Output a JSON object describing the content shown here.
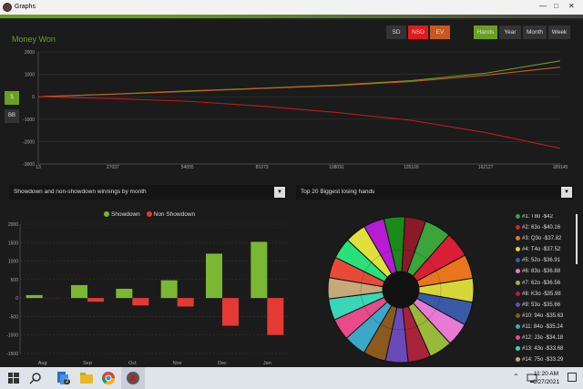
{
  "window": {
    "title": "Graphs"
  },
  "money_panel": {
    "title": "Money Won",
    "filter_buttons": [
      {
        "label": "SD",
        "color": "#333333"
      },
      {
        "label": "NSD",
        "color": "#e01b1b"
      },
      {
        "label": "EV",
        "color": "#c65a1e"
      }
    ],
    "range_buttons": [
      {
        "label": "Hands",
        "color": "#6aa022"
      },
      {
        "label": "Year",
        "color": "#333333"
      },
      {
        "label": "Month",
        "color": "#333333"
      },
      {
        "label": "Week",
        "color": "#333333"
      }
    ],
    "unit_buttons": [
      {
        "label": "$"
      },
      {
        "label": "BB"
      }
    ]
  },
  "bottom_left": {
    "dropdown": "Showdown and non-showdown winnings by month"
  },
  "bottom_right": {
    "dropdown": "Top 20 Biggest losing hands"
  },
  "chart_data": [
    {
      "type": "line",
      "title": "Money Won",
      "x_ticks": [
        "13",
        "27037",
        "54055",
        "81073",
        "108091",
        "135109",
        "162127",
        "189145"
      ],
      "y_ticks": [
        "2000",
        "1000",
        "0",
        "-1000",
        "-2000",
        "-3000"
      ],
      "ylim": [
        -3000,
        2000
      ],
      "xlim": [
        13,
        189145
      ],
      "series": [
        {
          "color": "#6aa022",
          "x": [
            13,
            27037,
            54055,
            81073,
            108091,
            135109,
            162127,
            189145
          ],
          "y": [
            0,
            120,
            260,
            380,
            520,
            720,
            1050,
            1600
          ]
        },
        {
          "color": "#c65a1e",
          "x": [
            13,
            27037,
            54055,
            81073,
            108091,
            135109,
            162127,
            189145
          ],
          "y": [
            0,
            110,
            240,
            370,
            500,
            680,
            960,
            1320
          ]
        },
        {
          "color": "#c21a1a",
          "x": [
            13,
            27037,
            54055,
            81073,
            108091,
            135109,
            162127,
            189145
          ],
          "y": [
            0,
            -80,
            -200,
            -420,
            -700,
            -1050,
            -1600,
            -2300
          ]
        }
      ],
      "grid": true
    },
    {
      "type": "bar",
      "categories": [
        "Aug",
        "Sep",
        "Oct",
        "Nov",
        "Dec",
        "Jan"
      ],
      "y_ticks": [
        "2000",
        "1500",
        "1000",
        "500",
        "0",
        "-500",
        "-1000",
        "-1500"
      ],
      "ylim": [
        -1500,
        2000
      ],
      "legend_position": "top",
      "grid": true,
      "series": [
        {
          "name": "Showdown",
          "color": "#7ab733",
          "values": [
            80,
            350,
            250,
            480,
            1200,
            1520
          ]
        },
        {
          "name": "Non Showdown",
          "color": "#e53935",
          "values": [
            0,
            -100,
            -200,
            -230,
            -750,
            -1000
          ]
        }
      ]
    },
    {
      "type": "pie",
      "items": [
        {
          "label": "#1: T8o -$42",
          "color": "#3aa53a",
          "value": 42
        },
        {
          "label": "#2: 63o -$40.16",
          "color": "#d91e36",
          "value": 40.16
        },
        {
          "label": "#3: Q3o -$37.82",
          "color": "#e8761c",
          "value": 37.82
        },
        {
          "label": "#4: T4o -$37.52",
          "color": "#d6d63a",
          "value": 37.52
        },
        {
          "label": "#5: 52o -$36.91",
          "color": "#3a5aa8",
          "value": 36.91
        },
        {
          "label": "#6: 83o -$36.88",
          "color": "#e87ad6",
          "value": 36.88
        },
        {
          "label": "#7: 62o -$36.56",
          "color": "#9ab83a",
          "value": 36.56
        },
        {
          "label": "#8: K3o -$35.98",
          "color": "#a8233a",
          "value": 35.98
        },
        {
          "label": "#9: 53o -$35.66",
          "color": "#6a4ab8",
          "value": 35.66
        },
        {
          "label": "#10: 94o -$35.63",
          "color": "#8a5a1e",
          "value": 35.63
        },
        {
          "label": "#11: 84o -$35.24",
          "color": "#3aa8c6",
          "value": 35.24
        },
        {
          "label": "#12: J3o -$34.18",
          "color": "#e84a8a",
          "value": 34.18
        },
        {
          "label": "#13: 43o -$33.68",
          "color": "#3ad6b8",
          "value": 33.68
        },
        {
          "label": "#14: 75o -$33.29",
          "color": "#c6a87a",
          "value": 33.29
        }
      ],
      "extra_slices": [
        {
          "color": "#e84a3a",
          "value": 33
        },
        {
          "color": "#2ae07a",
          "value": 33
        },
        {
          "color": "#e0e03a",
          "value": 33
        },
        {
          "color": "#b81ad6",
          "value": 33
        },
        {
          "color": "#1a8a1a",
          "value": 33
        },
        {
          "color": "#8a1a2a",
          "value": 33
        }
      ]
    }
  ],
  "taskbar": {
    "time": "11:20 AM",
    "date": "1/27/2021",
    "badge": "2",
    "icons": [
      "windows-start-icon",
      "search-icon",
      "files-icon",
      "folder-icon",
      "chrome-icon",
      "poker-app-icon"
    ]
  }
}
